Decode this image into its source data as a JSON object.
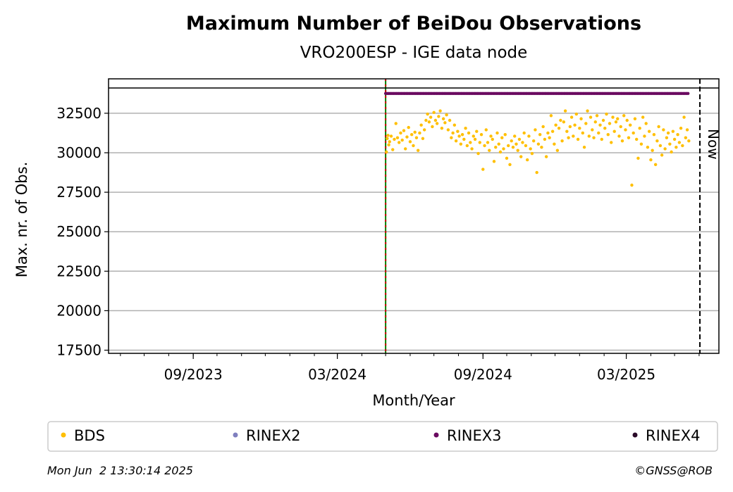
{
  "chart_data": {
    "type": "scatter",
    "title": "Maximum Number of BeiDou Observations",
    "subtitle": "VRO200ESP - IGE data node",
    "xlabel": "Month/Year",
    "ylabel": "Max. nr. of Obs.",
    "x_ticks": [
      "09/2023",
      "03/2024",
      "09/2024",
      "03/2025"
    ],
    "y_ticks": [
      "17500",
      "20000",
      "22500",
      "25000",
      "27500",
      "30000",
      "32500"
    ],
    "xlim": [
      "2023-05-17",
      "2025-06-26"
    ],
    "ylim": [
      17300,
      34100
    ],
    "grid": "horizontal",
    "now_label": "Now",
    "now_date": "2025-06-02",
    "start_date": "2024-05-01",
    "legend_position": "bottom",
    "colors": {
      "BDS": "#ffbf00",
      "RINEX2": "#7f7fbf",
      "RINEX3": "#6a0a60",
      "RINEX4": "#2a0a28",
      "start_line_green": "#008000",
      "start_line_red": "#cc0000"
    },
    "legend": [
      "BDS",
      "RINEX2",
      "RINEX3",
      "RINEX4"
    ],
    "series": [
      {
        "name": "BDS",
        "points": [
          [
            "2024-05-02",
            30050
          ],
          [
            "2024-05-03",
            30900
          ],
          [
            "2024-05-04",
            31100
          ],
          [
            "2024-05-05",
            30500
          ],
          [
            "2024-05-06",
            30700
          ],
          [
            "2024-05-08",
            31050
          ],
          [
            "2024-05-10",
            30200
          ],
          [
            "2024-05-12",
            30850
          ],
          [
            "2024-05-14",
            31850
          ],
          [
            "2024-05-16",
            30950
          ],
          [
            "2024-05-18",
            30650
          ],
          [
            "2024-05-20",
            31250
          ],
          [
            "2024-05-22",
            30800
          ],
          [
            "2024-05-24",
            31400
          ],
          [
            "2024-05-26",
            30250
          ],
          [
            "2024-05-28",
            31000
          ],
          [
            "2024-05-30",
            31600
          ],
          [
            "2024-06-01",
            30700
          ],
          [
            "2024-06-03",
            31150
          ],
          [
            "2024-06-05",
            30450
          ],
          [
            "2024-06-07",
            31300
          ],
          [
            "2024-06-09",
            30950
          ],
          [
            "2024-06-11",
            30150
          ],
          [
            "2024-06-13",
            31250
          ],
          [
            "2024-06-15",
            31750
          ],
          [
            "2024-06-17",
            30900
          ],
          [
            "2024-06-19",
            31450
          ],
          [
            "2024-06-21",
            32050
          ],
          [
            "2024-06-23",
            32450
          ],
          [
            "2024-06-25",
            31950
          ],
          [
            "2024-06-27",
            32250
          ],
          [
            "2024-06-29",
            31650
          ],
          [
            "2024-07-01",
            32550
          ],
          [
            "2024-07-03",
            32050
          ],
          [
            "2024-07-05",
            31850
          ],
          [
            "2024-07-07",
            32300
          ],
          [
            "2024-07-09",
            32650
          ],
          [
            "2024-07-11",
            31550
          ],
          [
            "2024-07-13",
            32150
          ],
          [
            "2024-07-15",
            31900
          ],
          [
            "2024-07-17",
            32400
          ],
          [
            "2024-07-19",
            31450
          ],
          [
            "2024-07-21",
            32050
          ],
          [
            "2024-07-23",
            30950
          ],
          [
            "2024-07-25",
            31250
          ],
          [
            "2024-07-27",
            31750
          ],
          [
            "2024-07-29",
            30750
          ],
          [
            "2024-07-31",
            31350
          ],
          [
            "2024-08-02",
            31050
          ],
          [
            "2024-08-04",
            30550
          ],
          [
            "2024-08-06",
            31150
          ],
          [
            "2024-08-08",
            30850
          ],
          [
            "2024-08-10",
            31550
          ],
          [
            "2024-08-12",
            30450
          ],
          [
            "2024-08-14",
            31250
          ],
          [
            "2024-08-16",
            30650
          ],
          [
            "2024-08-18",
            30250
          ],
          [
            "2024-08-20",
            31050
          ],
          [
            "2024-08-22",
            30850
          ],
          [
            "2024-08-24",
            31350
          ],
          [
            "2024-08-26",
            29950
          ],
          [
            "2024-08-28",
            30650
          ],
          [
            "2024-08-30",
            31150
          ],
          [
            "2024-09-01",
            28950
          ],
          [
            "2024-09-03",
            30450
          ],
          [
            "2024-09-05",
            31450
          ],
          [
            "2024-09-07",
            30650
          ],
          [
            "2024-09-09",
            30150
          ],
          [
            "2024-09-11",
            31050
          ],
          [
            "2024-09-13",
            30850
          ],
          [
            "2024-09-15",
            29450
          ],
          [
            "2024-09-17",
            30350
          ],
          [
            "2024-09-19",
            31250
          ],
          [
            "2024-09-21",
            30550
          ],
          [
            "2024-09-23",
            30050
          ],
          [
            "2024-09-25",
            30950
          ],
          [
            "2024-09-27",
            30250
          ],
          [
            "2024-09-29",
            31150
          ],
          [
            "2024-10-01",
            29650
          ],
          [
            "2024-10-03",
            30450
          ],
          [
            "2024-10-05",
            29250
          ],
          [
            "2024-10-07",
            30750
          ],
          [
            "2024-10-09",
            30350
          ],
          [
            "2024-10-11",
            31050
          ],
          [
            "2024-10-13",
            30550
          ],
          [
            "2024-10-15",
            30150
          ],
          [
            "2024-10-17",
            30850
          ],
          [
            "2024-10-19",
            29750
          ],
          [
            "2024-10-21",
            30650
          ],
          [
            "2024-10-23",
            31250
          ],
          [
            "2024-10-25",
            30450
          ],
          [
            "2024-10-27",
            29550
          ],
          [
            "2024-10-29",
            31050
          ],
          [
            "2024-10-31",
            30250
          ],
          [
            "2024-11-02",
            29950
          ],
          [
            "2024-11-04",
            30750
          ],
          [
            "2024-11-06",
            31450
          ],
          [
            "2024-11-08",
            28750
          ],
          [
            "2024-11-10",
            30550
          ],
          [
            "2024-11-12",
            31150
          ],
          [
            "2024-11-14",
            30350
          ],
          [
            "2024-11-16",
            31650
          ],
          [
            "2024-11-18",
            30850
          ],
          [
            "2024-11-20",
            29750
          ],
          [
            "2024-11-22",
            31250
          ],
          [
            "2024-11-24",
            30950
          ],
          [
            "2024-11-26",
            32350
          ],
          [
            "2024-11-28",
            31350
          ],
          [
            "2024-11-30",
            30550
          ],
          [
            "2024-12-02",
            31750
          ],
          [
            "2024-12-04",
            30150
          ],
          [
            "2024-12-06",
            31550
          ],
          [
            "2024-12-08",
            32050
          ],
          [
            "2024-12-10",
            30750
          ],
          [
            "2024-12-12",
            31950
          ],
          [
            "2024-12-14",
            32650
          ],
          [
            "2024-12-16",
            31350
          ],
          [
            "2024-12-18",
            30950
          ],
          [
            "2024-12-20",
            31650
          ],
          [
            "2024-12-22",
            32250
          ],
          [
            "2024-12-24",
            31050
          ],
          [
            "2024-12-26",
            31750
          ],
          [
            "2024-12-28",
            32450
          ],
          [
            "2024-12-30",
            30850
          ],
          [
            "2025-01-01",
            31550
          ],
          [
            "2025-01-03",
            32150
          ],
          [
            "2025-01-05",
            31250
          ],
          [
            "2025-01-07",
            30350
          ],
          [
            "2025-01-09",
            31850
          ],
          [
            "2025-01-11",
            32650
          ],
          [
            "2025-01-13",
            31050
          ],
          [
            "2025-01-15",
            32250
          ],
          [
            "2025-01-17",
            31450
          ],
          [
            "2025-01-19",
            30950
          ],
          [
            "2025-01-21",
            31950
          ],
          [
            "2025-01-23",
            32350
          ],
          [
            "2025-01-25",
            31250
          ],
          [
            "2025-01-27",
            31750
          ],
          [
            "2025-01-29",
            30850
          ],
          [
            "2025-01-31",
            32050
          ],
          [
            "2025-02-02",
            31550
          ],
          [
            "2025-02-04",
            32450
          ],
          [
            "2025-02-06",
            31150
          ],
          [
            "2025-02-08",
            31850
          ],
          [
            "2025-02-10",
            30650
          ],
          [
            "2025-02-12",
            32250
          ],
          [
            "2025-02-14",
            31350
          ],
          [
            "2025-02-16",
            31950
          ],
          [
            "2025-02-18",
            32150
          ],
          [
            "2025-02-20",
            31050
          ],
          [
            "2025-02-22",
            31650
          ],
          [
            "2025-02-24",
            30750
          ],
          [
            "2025-02-26",
            32350
          ],
          [
            "2025-02-28",
            31450
          ],
          [
            "2025-03-02",
            32050
          ],
          [
            "2025-03-04",
            30950
          ],
          [
            "2025-03-06",
            31750
          ],
          [
            "2025-03-08",
            27950
          ],
          [
            "2025-03-10",
            31250
          ],
          [
            "2025-03-12",
            32150
          ],
          [
            "2025-03-14",
            30850
          ],
          [
            "2025-03-16",
            29650
          ],
          [
            "2025-03-18",
            31550
          ],
          [
            "2025-03-20",
            30550
          ],
          [
            "2025-03-22",
            32250
          ],
          [
            "2025-03-24",
            31050
          ],
          [
            "2025-03-26",
            31850
          ],
          [
            "2025-03-28",
            30350
          ],
          [
            "2025-03-30",
            31350
          ],
          [
            "2025-04-01",
            29550
          ],
          [
            "2025-04-03",
            30150
          ],
          [
            "2025-04-05",
            31150
          ],
          [
            "2025-04-07",
            29250
          ],
          [
            "2025-04-09",
            30750
          ],
          [
            "2025-04-11",
            31650
          ],
          [
            "2025-04-13",
            30450
          ],
          [
            "2025-04-15",
            29850
          ],
          [
            "2025-04-17",
            31450
          ],
          [
            "2025-04-19",
            30250
          ],
          [
            "2025-04-21",
            30950
          ],
          [
            "2025-04-23",
            31250
          ],
          [
            "2025-04-25",
            30550
          ],
          [
            "2025-04-27",
            30050
          ],
          [
            "2025-04-29",
            31350
          ],
          [
            "2025-05-01",
            30850
          ],
          [
            "2025-05-03",
            30350
          ],
          [
            "2025-05-05",
            31150
          ],
          [
            "2025-05-07",
            30650
          ],
          [
            "2025-05-09",
            31550
          ],
          [
            "2025-05-11",
            30450
          ],
          [
            "2025-05-13",
            32250
          ],
          [
            "2025-05-15",
            30950
          ],
          [
            "2025-05-17",
            31450
          ],
          [
            "2025-05-19",
            30750
          ]
        ]
      },
      {
        "name": "RINEX2",
        "points": []
      },
      {
        "name": "RINEX3",
        "note_value": 33750,
        "points": [
          [
            "2024-05-01",
            33750
          ],
          [
            "2025-05-19",
            33750
          ]
        ]
      },
      {
        "name": "RINEX4",
        "points": []
      }
    ]
  },
  "footer": {
    "timestamp": "Mon Jun  2 13:30:14 2025",
    "credit": "©GNSS@ROB"
  }
}
